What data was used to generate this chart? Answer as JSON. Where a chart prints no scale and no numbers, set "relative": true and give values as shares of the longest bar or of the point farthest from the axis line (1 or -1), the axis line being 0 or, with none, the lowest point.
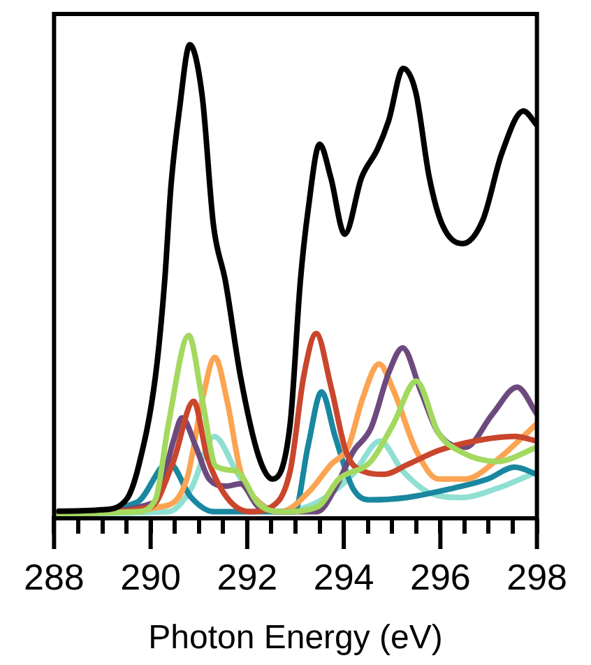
{
  "chart_data": {
    "type": "line",
    "xlabel": "Photon Energy (eV)",
    "relative": true,
    "grid": false,
    "legend": false,
    "marker": "none",
    "line_style": "solid",
    "xlim": [
      288,
      298
    ],
    "xticks": [
      288,
      {
        "value": 288.5,
        "label": null
      },
      {
        "value": 289,
        "label": null
      },
      {
        "value": 289.5,
        "label": null
      },
      290,
      {
        "value": 290.5,
        "label": null
      },
      {
        "value": 291,
        "label": null
      },
      {
        "value": 291.5,
        "label": null
      },
      292,
      {
        "value": 292.5,
        "label": null
      },
      {
        "value": 293,
        "label": null
      },
      {
        "value": 293.5,
        "label": null
      },
      294,
      {
        "value": 294.5,
        "label": null
      },
      {
        "value": 295,
        "label": null
      },
      {
        "value": 295.5,
        "label": null
      },
      296,
      {
        "value": 296.5,
        "label": null
      },
      {
        "value": 297,
        "label": null
      },
      {
        "value": 297.5,
        "label": null
      },
      298
    ],
    "series": [
      {
        "color": "#000000",
        "x": [
          288.1,
          289,
          289.5,
          289.75,
          290.1,
          290.29,
          290.42,
          290.6,
          290.81,
          291.07,
          291.3,
          291.55,
          291.86,
          292.24,
          292.52,
          292.89,
          293.1,
          293.26,
          293.5,
          293.73,
          294.02,
          294.37,
          294.7,
          294.93,
          295.23,
          295.49,
          295.77,
          296.04,
          296.46,
          296.88,
          297.27,
          297.72,
          298
        ],
        "values": [
          0.015,
          0.018,
          0.04,
          0.11,
          0.3,
          0.5,
          0.7,
          0.866,
          1,
          0.89,
          0.62,
          0.5,
          0.3,
          0.13,
          0.083,
          0.2,
          0.5,
          0.65,
          0.79,
          0.72,
          0.6,
          0.72,
          0.78,
          0.84,
          0.95,
          0.9,
          0.72,
          0.62,
          0.58,
          0.63,
          0.77,
          0.86,
          0.83
        ]
      },
      {
        "color": "#a3d95f",
        "x": [
          288.1,
          289.72,
          290.1,
          290.37,
          290.79,
          291.07,
          291.35,
          291.77,
          292.24,
          292.7,
          293.45,
          293.9,
          294.56,
          295.03,
          295.5,
          295.96,
          296.43,
          297.17,
          298
        ],
        "values": [
          0.01,
          0.014,
          0.04,
          0.2,
          0.386,
          0.25,
          0.11,
          0.1,
          0.03,
          0.014,
          0.024,
          0.083,
          0.12,
          0.2,
          0.29,
          0.18,
          0.14,
          0.12,
          0.15
        ]
      },
      {
        "color": "#c9462c",
        "x": [
          288.1,
          290,
          290.47,
          290.89,
          291.17,
          291.58,
          292.05,
          292.5,
          292.89,
          293.17,
          293.43,
          293.73,
          294.05,
          294.38,
          294.84,
          295.31,
          295.96,
          296.7,
          297.54,
          298
        ],
        "values": [
          0.01,
          0.024,
          0.12,
          0.247,
          0.13,
          0.044,
          0.014,
          0.024,
          0.1,
          0.3,
          0.39,
          0.28,
          0.14,
          0.1,
          0.093,
          0.113,
          0.143,
          0.163,
          0.173,
          0.163
        ]
      },
      {
        "color": "#6d4a7e",
        "x": [
          288.1,
          290.1,
          290.47,
          290.65,
          290.93,
          291.21,
          291.58,
          291.86,
          292.24,
          292.8,
          293.45,
          293.82,
          294.19,
          294.56,
          294.94,
          295.22,
          295.59,
          295.96,
          296.52,
          297.08,
          297.59,
          298
        ],
        "values": [
          0.01,
          0.034,
          0.163,
          0.212,
          0.153,
          0.083,
          0.068,
          0.073,
          0.024,
          0.014,
          0.014,
          0.063,
          0.14,
          0.19,
          0.31,
          0.36,
          0.27,
          0.18,
          0.15,
          0.22,
          0.277,
          0.22
        ]
      },
      {
        "color": "#fca452",
        "x": [
          288.1,
          290.19,
          290.75,
          291.07,
          291.33,
          291.58,
          291.86,
          292.24,
          292.7,
          293.26,
          293.73,
          294.1,
          294.38,
          294.73,
          295.03,
          295.5,
          295.96,
          296.52,
          297.17,
          298
        ],
        "values": [
          0.01,
          0.024,
          0.083,
          0.25,
          0.34,
          0.25,
          0.1,
          0.034,
          0.014,
          0.054,
          0.113,
          0.153,
          0.25,
          0.326,
          0.27,
          0.143,
          0.083,
          0.083,
          0.123,
          0.2
        ]
      },
      {
        "color": "#1a87a0",
        "x": [
          288.1,
          289.72,
          290.37,
          290.84,
          291.3,
          292.98,
          293.26,
          293.54,
          293.82,
          294.19,
          294.56,
          295.31,
          296.24,
          296.98,
          297.54,
          298
        ],
        "values": [
          0.01,
          0.034,
          0.118,
          0.044,
          0.014,
          0.014,
          0.153,
          0.267,
          0.173,
          0.063,
          0.039,
          0.044,
          0.063,
          0.083,
          0.108,
          0.093
        ]
      },
      {
        "color": "#8fe0d2",
        "x": [
          288.1,
          290.37,
          290.84,
          291.32,
          291.77,
          292.14,
          292.7,
          293.45,
          294.19,
          294.75,
          295.22,
          295.77,
          296.43,
          297.17,
          298
        ],
        "values": [
          0.01,
          0.014,
          0.063,
          0.173,
          0.1,
          0.044,
          0.014,
          0.034,
          0.093,
          0.163,
          0.1,
          0.054,
          0.044,
          0.063,
          0.098
        ]
      }
    ]
  }
}
